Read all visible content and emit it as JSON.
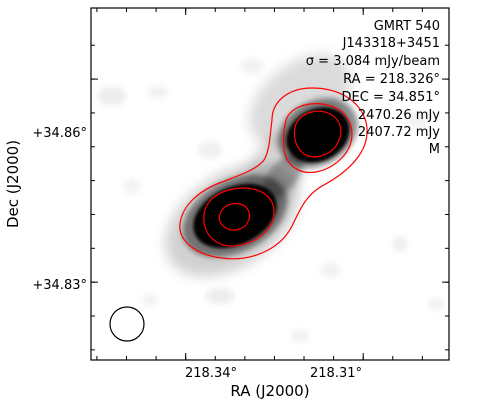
{
  "chart_data": {
    "type": "heatmap",
    "title": "",
    "xlabel": "RA (J2000)",
    "ylabel": "Dec (J2000)",
    "x_axis_inverted": true,
    "xlim": [
      218.356,
      218.2955
    ],
    "ylim": [
      34.8185,
      34.8705
    ],
    "x_ticks": [
      {
        "value": 218.34,
        "label": "218.34°"
      },
      {
        "value": 218.31,
        "label": "218.31°"
      }
    ],
    "y_ticks": [
      {
        "value": 34.86,
        "label": "+34.86°"
      },
      {
        "value": 34.83,
        "label": "+34.83°"
      }
    ],
    "grid": false,
    "colormap": "grayscale (white = low, black = high)",
    "contour_color": "#ff0000",
    "info_text": [
      "GMRT 540",
      "J143318+3451",
      "σ = 3.084 mJy/beam",
      "RA = 218.326°",
      "DEC = 34.851°",
      "2470.26 mJy",
      "2407.72 mJy",
      "M"
    ],
    "sources": [
      {
        "ra": 218.339,
        "dec": 34.8465,
        "peak_relative": 1.0
      },
      {
        "ra": 218.3125,
        "dec": 34.8605,
        "peak_relative": 1.0
      }
    ],
    "contour_levels": [
      "outer",
      "middle",
      "inner"
    ],
    "beam_shape": "circle",
    "beam_location": "bottom-left"
  }
}
